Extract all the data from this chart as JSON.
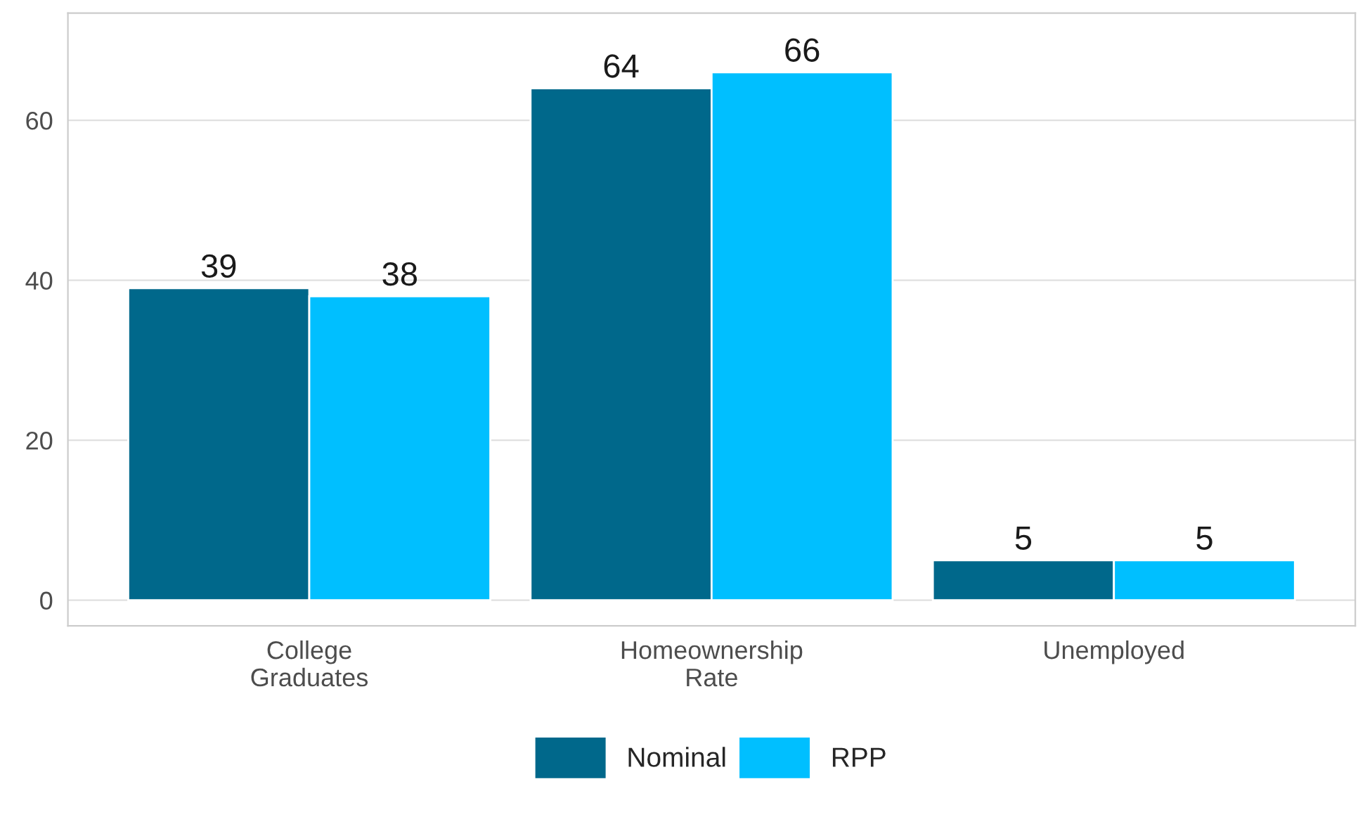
{
  "chart_data": {
    "type": "bar",
    "categories": [
      "College\nGraduates",
      "Homeownership\nRate",
      "Unemployed"
    ],
    "series": [
      {
        "name": "Nominal",
        "color": "#00688b",
        "values": [
          39,
          64,
          5
        ]
      },
      {
        "name": "RPP",
        "color": "#00bfff",
        "values": [
          38,
          66,
          5
        ]
      }
    ],
    "ylim": [
      -3.2,
      73.4
    ],
    "yticks": [
      0,
      20,
      40,
      60
    ],
    "grid": "y",
    "legend": "bottom",
    "data_labels": true
  }
}
